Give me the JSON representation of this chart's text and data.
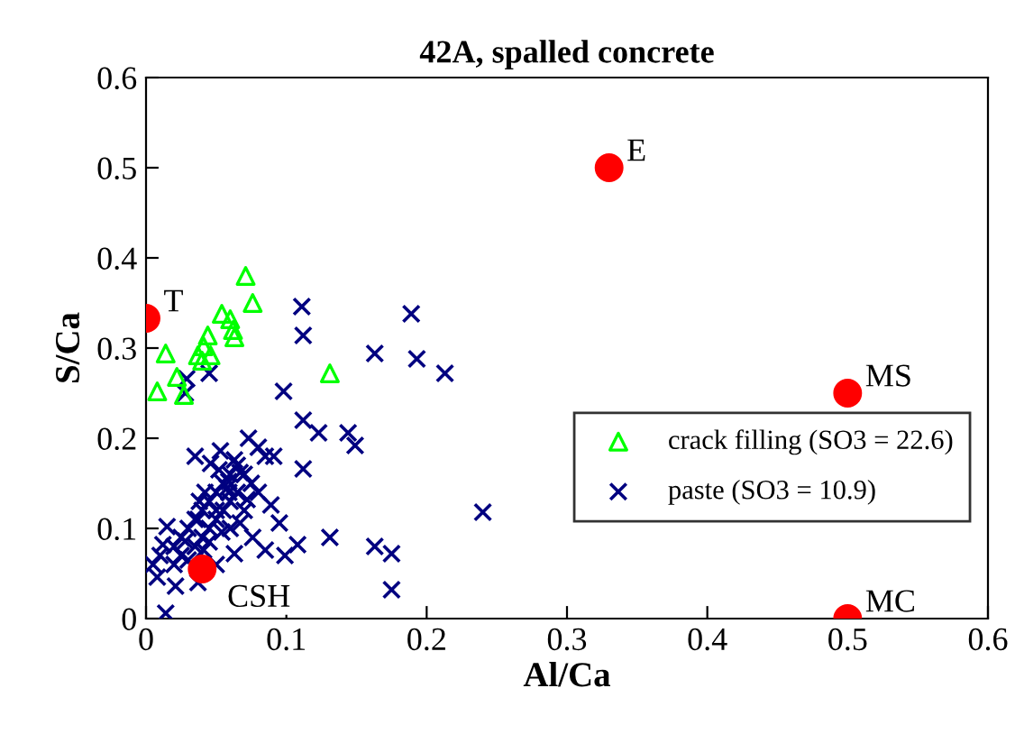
{
  "chart_data": {
    "type": "scatter",
    "title": "42A, spalled concrete",
    "xlabel": "Al/Ca",
    "ylabel": "S/Ca",
    "xlim": [
      0,
      0.6
    ],
    "ylim": [
      0,
      0.6
    ],
    "xticks": [
      0,
      0.1,
      0.2,
      0.3,
      0.4,
      0.5,
      0.6
    ],
    "yticks": [
      0,
      0.1,
      0.2,
      0.3,
      0.4,
      0.5,
      0.6
    ],
    "grid": false,
    "legend": "right",
    "series": [
      {
        "name": "paste (SO3 = 10.9)",
        "color": "#000080",
        "marker": "cross",
        "x": [
          0.111,
          0.112,
          0.189,
          0.163,
          0.193,
          0.213,
          0.144,
          0.149,
          0.24,
          0.163,
          0.175,
          0.175,
          0.098,
          0.029,
          0.028,
          0.045,
          0.112,
          0.123,
          0.073,
          0.035,
          0.046,
          0.063,
          0.091,
          0.059,
          0.112,
          0.072,
          0.089,
          0.131,
          0.095,
          0.108,
          0.085,
          0.099,
          0.063,
          0.041,
          0.015,
          0.012,
          0.008,
          0.021,
          0.014,
          0.05,
          0.037,
          0.028,
          0.054,
          0.067,
          0.076,
          0.05,
          0.037,
          0.059,
          0.067,
          0.053,
          0.03,
          0.035,
          0.04,
          0.045,
          0.05,
          0.055,
          0.06,
          0.045,
          0.05,
          0.055,
          0.06,
          0.065,
          0.04,
          0.035,
          0.025,
          0.02,
          0.03,
          0.045,
          0.06,
          0.07,
          0.075,
          0.065,
          0.025,
          0.02,
          0.01,
          0.005,
          0.052,
          0.058,
          0.042,
          0.038,
          0.07,
          0.08,
          0.085,
          0.08
        ],
        "values": [
          0.346,
          0.314,
          0.338,
          0.294,
          0.288,
          0.272,
          0.206,
          0.192,
          0.118,
          0.08,
          0.072,
          0.032,
          0.252,
          0.266,
          0.25,
          0.272,
          0.22,
          0.206,
          0.2,
          0.18,
          0.172,
          0.176,
          0.18,
          0.152,
          0.166,
          0.132,
          0.126,
          0.09,
          0.106,
          0.082,
          0.076,
          0.07,
          0.072,
          0.076,
          0.102,
          0.082,
          0.046,
          0.036,
          0.006,
          0.12,
          0.11,
          0.086,
          0.096,
          0.106,
          0.09,
          0.06,
          0.04,
          0.14,
          0.162,
          0.186,
          0.1,
          0.11,
          0.12,
          0.13,
          0.14,
          0.15,
          0.16,
          0.1,
          0.11,
          0.12,
          0.13,
          0.14,
          0.09,
          0.08,
          0.07,
          0.06,
          0.065,
          0.085,
          0.1,
          0.12,
          0.15,
          0.17,
          0.09,
          0.08,
          0.07,
          0.06,
          0.165,
          0.145,
          0.14,
          0.13,
          0.16,
          0.14,
          0.18,
          0.19
        ]
      },
      {
        "name": "crack filling (SO3 = 22.6)",
        "color": "#00ff00",
        "marker": "triangle",
        "x": [
          0.071,
          0.076,
          0.054,
          0.06,
          0.062,
          0.063,
          0.044,
          0.041,
          0.037,
          0.046,
          0.04,
          0.014,
          0.022,
          0.008,
          0.027,
          0.131
        ],
        "values": [
          0.38,
          0.35,
          0.338,
          0.332,
          0.32,
          0.312,
          0.314,
          0.302,
          0.292,
          0.292,
          0.286,
          0.294,
          0.268,
          0.252,
          0.248,
          0.272
        ]
      },
      {
        "color": "#ff0000",
        "marker": "circle",
        "x": [
          0,
          0.33,
          0.5,
          0.5,
          0.04
        ],
        "values": [
          0.333,
          0.5,
          0.25,
          0,
          0.055
        ]
      }
    ],
    "annotations": [
      {
        "text": "T",
        "x": 0,
        "y": 0.333
      },
      {
        "text": "E",
        "x": 0.33,
        "y": 0.5
      },
      {
        "text": "MS",
        "x": 0.5,
        "y": 0.25
      },
      {
        "text": "MC",
        "x": 0.5,
        "y": 0
      },
      {
        "text": "CSH",
        "x": 0.04,
        "y": 0.055
      }
    ]
  }
}
